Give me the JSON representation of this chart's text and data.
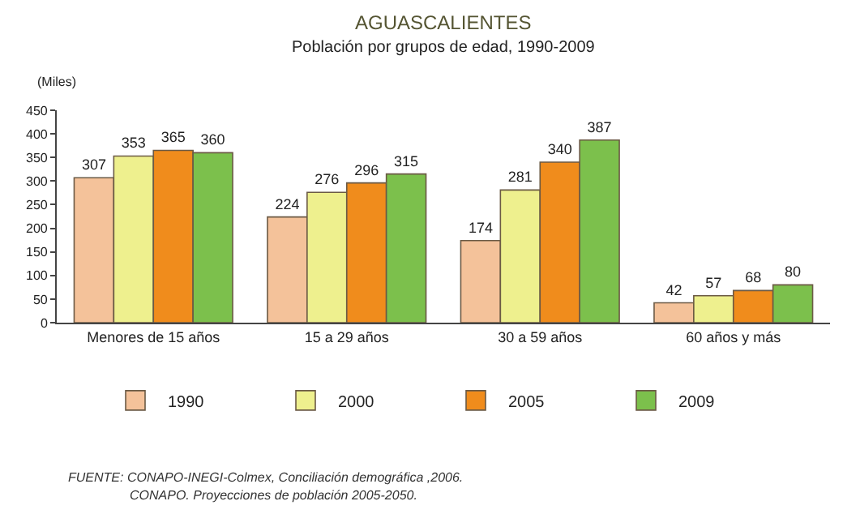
{
  "chart_data": {
    "type": "bar",
    "title": "AGUASCALIENTES",
    "subtitle": "Población por grupos de edad, 1990-2009",
    "ylabel": "(Miles)",
    "categories": [
      "Menores de 15 años",
      "15 a 29 años",
      "30 a 59 años",
      "60 años y más"
    ],
    "series": [
      {
        "name": "1990",
        "color": "#f4c29a",
        "values": [
          307,
          224,
          174,
          42
        ]
      },
      {
        "name": "2000",
        "color": "#eef08e",
        "values": [
          353,
          276,
          281,
          57
        ]
      },
      {
        "name": "2005",
        "color": "#f08c1c",
        "values": [
          365,
          296,
          340,
          68
        ]
      },
      {
        "name": "2009",
        "color": "#7cc04c",
        "values": [
          360,
          315,
          387,
          80
        ]
      }
    ],
    "ylim": [
      0,
      450
    ],
    "yticks": [
      0,
      50,
      100,
      150,
      200,
      250,
      300,
      350,
      400,
      450
    ],
    "grid": false,
    "legend": "bottom",
    "data_labels": true,
    "annotations": [
      "FUENTE: $^{}$CONAPO-INEGI-Colmex, Conciliación demográfica ,2006.",
      "CONAPO. Proyecciones de población 2005-2050."
    ]
  }
}
